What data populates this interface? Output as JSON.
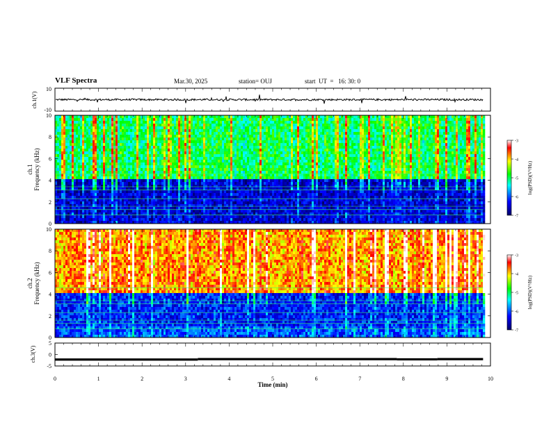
{
  "header": {
    "title": "VLF Spectra",
    "date": "Mar.30, 2025",
    "station": "station= OUJ",
    "start": "start  UT  =   16: 30: 0"
  },
  "chart_data": [
    {
      "type": "line",
      "panel": "ch1-waveform",
      "ylabel": "ch.1(V)",
      "ylim": [
        -10,
        10
      ],
      "yticklabels": [
        "10",
        "-10"
      ],
      "baseline": 0,
      "x_range_min": [
        0,
        9.83
      ]
    },
    {
      "type": "heatmap",
      "panel": "ch1-spectrogram",
      "ylabel": "ch.1\nFrequency  (kHz)",
      "ylim": [
        0,
        10
      ],
      "yticks": [
        0,
        2,
        4,
        6,
        8,
        10
      ],
      "x_range_min": [
        0,
        9.83
      ],
      "colorbar": {
        "label": "log(PSD)(V²/Hz)",
        "range": [
          -7,
          -3
        ],
        "ticks": [
          -7,
          -6,
          -5,
          -4,
          -3
        ]
      },
      "description_levels": {
        "0-1 kHz": -6.5,
        "1-4 kHz": -6.5,
        "4-10 kHz": -5.0
      }
    },
    {
      "type": "heatmap",
      "panel": "ch2-spectrogram",
      "ylabel": "ch.2\nFrequency  (kHz)",
      "ylim": [
        0,
        10
      ],
      "yticks": [
        0,
        2,
        4,
        6,
        8,
        10
      ],
      "x_range_min": [
        0,
        9.83
      ],
      "colorbar": {
        "label": "log(PSD)(V²/Hz)",
        "range": [
          -7,
          -3
        ],
        "ticks": [
          -7,
          -6,
          -5,
          -4,
          -3
        ]
      },
      "description_levels": {
        "0-1 kHz": -6.0,
        "1-4 kHz": -6.2,
        "4-10 kHz": -3.8
      }
    },
    {
      "type": "line",
      "panel": "ch3-waveform",
      "ylabel": "ch.3(V)",
      "ylim": [
        -5,
        5
      ],
      "yticks": [
        -5,
        0,
        5
      ],
      "segments": [
        {
          "x": [
            0,
            3.28
          ],
          "y": -2.2
        },
        {
          "x": [
            3.28,
            7.85
          ],
          "y": -2.0
        },
        {
          "x": [
            7.85,
            8.78
          ],
          "y": -2.1
        },
        {
          "x": [
            8.78,
            9.83
          ],
          "y": -2.0
        }
      ]
    }
  ],
  "xaxis": {
    "label": "Time  (min)",
    "xlim": [
      0,
      10
    ],
    "ticks": [
      "0",
      "1",
      "2",
      "3",
      "4",
      "5",
      "6",
      "7",
      "8",
      "9",
      "10"
    ]
  },
  "colors": {
    "colormap": [
      "#000066",
      "#0000ff",
      "#00ffff",
      "#00ff00",
      "#ffff00",
      "#ff0000",
      "#ffffff"
    ]
  }
}
